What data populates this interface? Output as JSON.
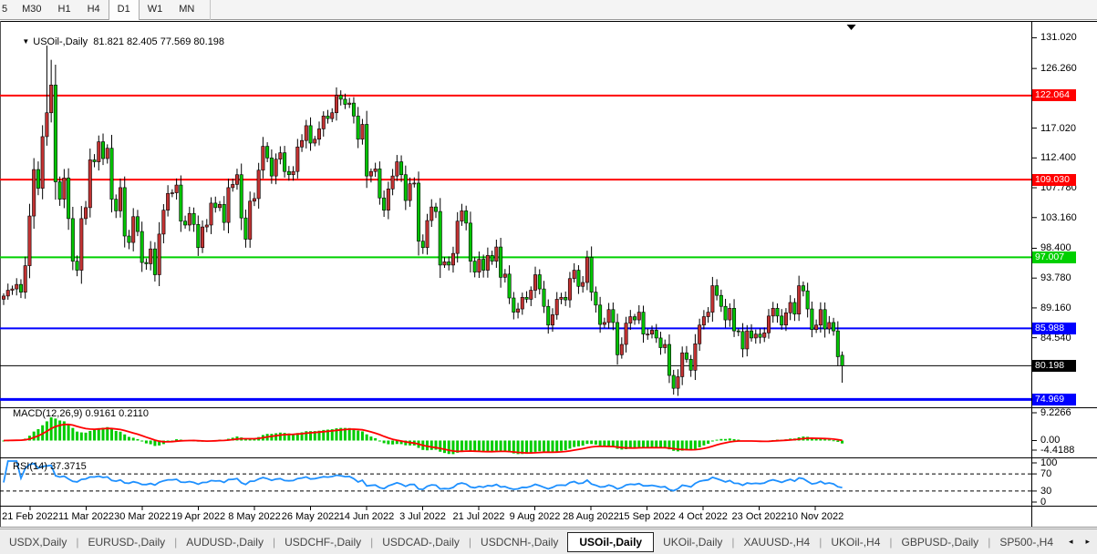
{
  "toolbar": {
    "items": [
      "5",
      "M30",
      "H1",
      "H4",
      "D1",
      "W1",
      "MN"
    ],
    "active": "D1"
  },
  "chart": {
    "title": "USOil-,Daily",
    "ohlc": "81.821 82.405 77.569 80.198",
    "dropdown_icon": "▼",
    "macd_label": "MACD(12,26,9) 0.9161 0.2110",
    "rsi_label": "RSI(14) 37.3715"
  },
  "colors": {
    "bull": "#c23232",
    "bear": "#00c400",
    "wick": "#000000",
    "macd_hist": "#00cc00",
    "macd_signal": "#ff0000",
    "rsi_line": "#1e90ff",
    "axis_line": "#000000"
  },
  "price_axis": {
    "ticks": [
      "131.020",
      "126.260",
      "117.020",
      "112.400",
      "107.780",
      "103.160",
      "98.400",
      "93.780",
      "89.160",
      "84.540"
    ],
    "levels": [
      {
        "label": "122.064",
        "value": 122.064,
        "color": "#ff0000",
        "width": 2
      },
      {
        "label": "109.030",
        "value": 109.03,
        "color": "#ff0000",
        "width": 2
      },
      {
        "label": "97.007",
        "value": 97.007,
        "color": "#00d000",
        "width": 2
      },
      {
        "label": "85.988",
        "value": 85.988,
        "color": "#0000ff",
        "width": 2
      },
      {
        "label": "80.198",
        "value": 80.198,
        "color": "#000000",
        "width": 1
      },
      {
        "label": "74.969",
        "value": 74.969,
        "color": "#0000ff",
        "width": 3
      }
    ]
  },
  "macd_axis": {
    "labels": [
      "9.2266",
      "0.00",
      "-4.4188"
    ],
    "max": 9.2266,
    "min": -4.4188
  },
  "rsi_axis": {
    "labels": [
      "100",
      "70",
      "30",
      "0"
    ],
    "max": 100,
    "min": 0,
    "bands": [
      70,
      30
    ]
  },
  "date_axis": {
    "labels": [
      "21 Feb 2022",
      "11 Mar 2022",
      "30 Mar 2022",
      "19 Apr 2022",
      "8 May 2022",
      "26 May 2022",
      "14 Jun 2022",
      "3 Jul 2022",
      "21 Jul 2022",
      "9 Aug 2022",
      "28 Aug 2022",
      "15 Sep 2022",
      "4 Oct 2022",
      "23 Oct 2022",
      "10 Nov 2022"
    ]
  },
  "tabs": {
    "items": [
      "USDX,Daily",
      "EURUSD-,Daily",
      "AUDUSD-,Daily",
      "USDCHF-,Daily",
      "USDCAD-,Daily",
      "USDCNH-,Daily",
      "USOil-,Daily",
      "UKOil-,Daily",
      "XAUUSD-,H4",
      "UKOil-,H4",
      "GBPUSD-,Daily",
      "SP500-,H4"
    ],
    "active_index": 6,
    "scroll_left": "◂",
    "scroll_right": "▸"
  },
  "chart_data": {
    "type": "candlestick",
    "symbol": "USOil-",
    "timeframe": "Daily",
    "title": "USOil-,Daily 81.821 82.405 77.569 80.198",
    "price_range": [
      73.9,
      133.2
    ],
    "first_open": 90.5,
    "closes": [
      91.0,
      91.9,
      92.1,
      92.8,
      91.6,
      95.7,
      103.4,
      110.6,
      107.7,
      115.7,
      119.4,
      123.7,
      108.7,
      106.0,
      109.3,
      103.0,
      96.4,
      95.0,
      103.0,
      104.7,
      112.1,
      111.8,
      114.9,
      112.3,
      113.9,
      106.0,
      104.2,
      107.8,
      100.3,
      99.3,
      103.3,
      101.0,
      96.2,
      96.0,
      98.3,
      94.3,
      100.6,
      104.3,
      106.9,
      107.0,
      108.2,
      102.6,
      102.0,
      103.8,
      102.1,
      98.5,
      101.7,
      102.0,
      105.4,
      104.7,
      105.2,
      102.4,
      107.8,
      108.3,
      109.8,
      103.1,
      99.8,
      105.7,
      106.1,
      110.5,
      114.2,
      112.4,
      109.6,
      112.2,
      113.2,
      110.3,
      109.8,
      110.3,
      114.1,
      115.1,
      117.4,
      114.7,
      115.3,
      116.9,
      118.9,
      118.5,
      119.4,
      122.1,
      121.5,
      120.7,
      120.9,
      118.9,
      115.3,
      117.6,
      109.6,
      110.3,
      110.7,
      106.2,
      104.3,
      107.6,
      109.6,
      111.8,
      109.8,
      105.8,
      108.4,
      108.5,
      99.5,
      98.5,
      102.7,
      104.8,
      104.1,
      95.8,
      96.3,
      95.8,
      97.6,
      102.6,
      104.2,
      102.3,
      96.4,
      94.7,
      96.7,
      95.0,
      97.3,
      96.4,
      98.6,
      93.9,
      94.4,
      90.7,
      88.5,
      89.0,
      90.8,
      90.5,
      91.9,
      94.3,
      92.1,
      89.4,
      86.5,
      88.1,
      90.5,
      90.8,
      90.4,
      93.7,
      95.0,
      92.5,
      93.1,
      97.0,
      91.6,
      89.6,
      86.6,
      86.9,
      88.9,
      86.9,
      81.9,
      83.5,
      86.8,
      87.8,
      87.3,
      88.5,
      85.1,
      85.1,
      85.7,
      84.5,
      83.0,
      83.5,
      78.7,
      76.7,
      78.5,
      82.2,
      81.2,
      79.5,
      83.6,
      86.5,
      87.8,
      88.5,
      92.6,
      91.1,
      89.4,
      87.3,
      89.1,
      85.6,
      85.5,
      82.8,
      85.6,
      84.5,
      85.1,
      84.6,
      85.3,
      87.9,
      89.1,
      87.9,
      86.5,
      88.4,
      90.0,
      88.2,
      92.6,
      91.8,
      89.0,
      85.8,
      86.5,
      88.9,
      85.9,
      86.9,
      85.6,
      81.6,
      80.198
    ],
    "bar_overrides": {
      "10": {
        "h": 129.8
      },
      "11": {
        "h": 127.6
      },
      "194": {
        "o": 81.821,
        "h": 82.405,
        "l": 77.569,
        "c": 80.198
      }
    },
    "levels": [
      122.064,
      109.03,
      97.007,
      85.988,
      80.198,
      74.969
    ],
    "x_tick_labels": [
      "21 Feb 2022",
      "11 Mar 2022",
      "30 Mar 2022",
      "19 Apr 2022",
      "8 May 2022",
      "26 May 2022",
      "14 Jun 2022",
      "3 Jul 2022",
      "21 Jul 2022",
      "9 Aug 2022",
      "28 Aug 2022",
      "15 Sep 2022",
      "4 Oct 2022",
      "23 Oct 2022",
      "10 Nov 2022"
    ],
    "indicators": [
      {
        "name": "MACD",
        "params": [
          12,
          26,
          9
        ],
        "display_values": [
          0.9161,
          0.211
        ],
        "axis_range": [
          -4.4188,
          9.2266
        ]
      },
      {
        "name": "RSI",
        "params": [
          14
        ],
        "display_value": 37.3715,
        "axis_range": [
          0,
          100
        ],
        "bands": [
          70,
          30
        ]
      }
    ]
  }
}
